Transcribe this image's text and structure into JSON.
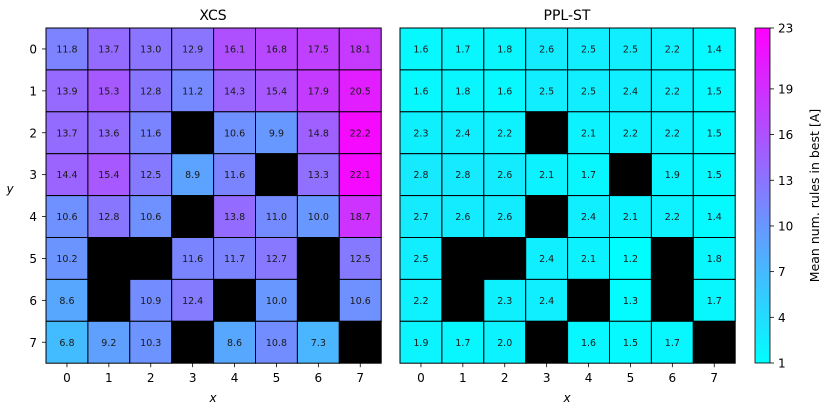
{
  "chart_data": [
    {
      "type": "heatmap",
      "title": "XCS",
      "xlabel": "x",
      "ylabel": "y",
      "x_ticks": [
        "0",
        "1",
        "2",
        "3",
        "4",
        "5",
        "6",
        "7"
      ],
      "y_ticks": [
        "0",
        "1",
        "2",
        "3",
        "4",
        "5",
        "6",
        "7"
      ],
      "values": [
        [
          11.8,
          13.7,
          13.0,
          12.9,
          16.1,
          16.8,
          17.5,
          18.1
        ],
        [
          13.9,
          15.3,
          12.8,
          11.2,
          14.3,
          15.4,
          17.9,
          20.5
        ],
        [
          13.7,
          13.6,
          11.6,
          null,
          10.6,
          9.9,
          14.8,
          22.2
        ],
        [
          14.4,
          15.4,
          12.5,
          8.9,
          11.6,
          null,
          13.3,
          22.1
        ],
        [
          10.6,
          12.8,
          10.6,
          null,
          13.8,
          11.0,
          10.0,
          18.7
        ],
        [
          10.2,
          null,
          null,
          11.6,
          11.7,
          12.7,
          null,
          12.5
        ],
        [
          8.6,
          null,
          10.9,
          12.4,
          null,
          10.0,
          null,
          10.6
        ],
        [
          6.8,
          9.2,
          10.3,
          null,
          8.6,
          10.8,
          7.3,
          null
        ]
      ]
    },
    {
      "type": "heatmap",
      "title": "PPL-ST",
      "xlabel": "x",
      "x_ticks": [
        "0",
        "1",
        "2",
        "3",
        "4",
        "5",
        "6",
        "7"
      ],
      "values": [
        [
          1.6,
          1.7,
          1.8,
          2.6,
          2.5,
          2.5,
          2.2,
          1.4
        ],
        [
          1.6,
          1.8,
          1.6,
          2.5,
          2.5,
          2.4,
          2.2,
          1.5
        ],
        [
          2.3,
          2.4,
          2.2,
          null,
          2.1,
          2.2,
          2.2,
          1.5
        ],
        [
          2.8,
          2.8,
          2.6,
          2.1,
          1.7,
          null,
          1.9,
          1.5
        ],
        [
          2.7,
          2.6,
          2.6,
          null,
          2.4,
          2.1,
          2.2,
          1.4
        ],
        [
          2.5,
          null,
          null,
          2.4,
          2.1,
          1.2,
          null,
          1.8
        ],
        [
          2.2,
          null,
          2.3,
          2.4,
          null,
          1.3,
          null,
          1.7
        ],
        [
          1.9,
          1.7,
          2.0,
          null,
          1.6,
          1.5,
          1.7,
          null
        ]
      ]
    }
  ],
  "colorbar": {
    "label": "Mean num. rules in best [A]",
    "min": 1,
    "max": 23,
    "ticks": [
      "1",
      "4",
      "7",
      "10",
      "13",
      "16",
      "19",
      "23"
    ],
    "colormap": "cool",
    "low_color": "#00ffff",
    "high_color": "#ff00ff",
    "masked_color": "#000000"
  }
}
